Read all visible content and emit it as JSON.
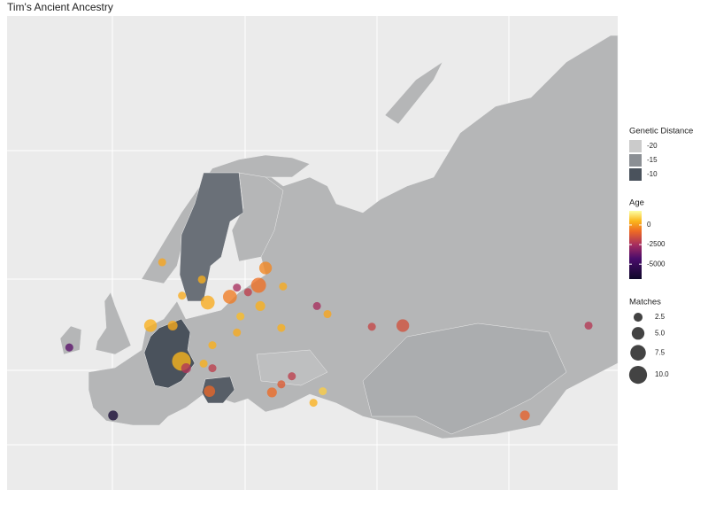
{
  "title": "Tim's Ancient Ancestry",
  "legend_genetic_distance": {
    "title": "Genetic Distance",
    "ticks": [
      -20,
      -15,
      -10
    ],
    "lim": [
      -20,
      -10
    ]
  },
  "regions": [
    {
      "distance": -12.5
    },
    {
      "distance": -10
    },
    {
      "distance": -11
    },
    {
      "distance": -17.5
    },
    {
      "distance": -19
    }
  ],
  "legend_age": {
    "title": "Age",
    "ticks": [
      0,
      -2500,
      -5000
    ],
    "lim": [
      -6900,
      1800
    ]
  },
  "legend_matches": {
    "title": "Matches",
    "ticks": [
      2.5,
      {
        "value": 5,
        "label": "5.0"
      },
      7.5,
      {
        "value": 10,
        "label": "10.0"
      }
    ]
  },
  "points": [
    {
      "lon": -7.5,
      "lat": 51.6,
      "age": -4000,
      "matches": 2
    },
    {
      "lon": 0.0,
      "lat": 45.7,
      "age": -6500,
      "matches": 3
    },
    {
      "lon": 11.7,
      "lat": 50.4,
      "age": 500,
      "matches": 11
    },
    {
      "lon": 16.2,
      "lat": 55.5,
      "age": 300,
      "matches": 6
    },
    {
      "lon": 20.0,
      "lat": 56.0,
      "age": -500,
      "matches": 6
    },
    {
      "lon": 24.9,
      "lat": 57.0,
      "age": -700,
      "matches": 7
    },
    {
      "lon": 26.1,
      "lat": 58.5,
      "age": -300,
      "matches": 5
    },
    {
      "lon": 49.6,
      "lat": 53.5,
      "age": -1500,
      "matches": 5
    },
    {
      "lon": 81.4,
      "lat": 53.5,
      "age": -2200,
      "matches": 2
    },
    {
      "lon": 70.5,
      "lat": 45.7,
      "age": -1000,
      "matches": 3
    },
    {
      "lon": 27.2,
      "lat": 47.7,
      "age": -800,
      "matches": 3
    },
    {
      "lon": 16.5,
      "lat": 47.8,
      "age": -900,
      "matches": 4
    },
    {
      "lon": 8.4,
      "lat": 59.0,
      "age": 200,
      "matches": 2
    },
    {
      "lon": 6.4,
      "lat": 53.5,
      "age": 400,
      "matches": 5
    },
    {
      "lon": 10.2,
      "lat": 53.5,
      "age": 300,
      "matches": 3
    },
    {
      "lon": 21.8,
      "lat": 54.3,
      "age": 600,
      "matches": 2
    },
    {
      "lon": 25.2,
      "lat": 55.2,
      "age": 400,
      "matches": 3
    },
    {
      "lon": 29.1,
      "lat": 56.9,
      "age": 300,
      "matches": 2
    },
    {
      "lon": 34.9,
      "lat": 55.2,
      "age": -2500,
      "matches": 2
    },
    {
      "lon": 36.7,
      "lat": 54.5,
      "age": 200,
      "matches": 2
    },
    {
      "lon": 44.3,
      "lat": 53.4,
      "age": -1800,
      "matches": 2
    },
    {
      "lon": 28.8,
      "lat": 53.3,
      "age": 400,
      "matches": 2
    },
    {
      "lon": 21.2,
      "lat": 52.9,
      "age": 300,
      "matches": 2
    },
    {
      "lon": 17.0,
      "lat": 51.8,
      "age": 400,
      "matches": 2
    },
    {
      "lon": 15.5,
      "lat": 50.2,
      "age": 400,
      "matches": 2
    },
    {
      "lon": 17.0,
      "lat": 49.8,
      "age": -2000,
      "matches": 2
    },
    {
      "lon": 12.5,
      "lat": 49.8,
      "age": -2300,
      "matches": 3
    },
    {
      "lon": 35.9,
      "lat": 47.8,
      "age": 900,
      "matches": 2
    },
    {
      "lon": 34.3,
      "lat": 46.8,
      "age": 400,
      "matches": 2
    },
    {
      "lon": 30.6,
      "lat": 49.1,
      "age": -2000,
      "matches": 2
    },
    {
      "lon": 28.8,
      "lat": 48.4,
      "age": -1200,
      "matches": 2
    },
    {
      "lon": 23.1,
      "lat": 56.4,
      "age": -2000,
      "matches": 2
    },
    {
      "lon": 21.2,
      "lat": 56.8,
      "age": -2500,
      "matches": 2
    },
    {
      "lon": 11.8,
      "lat": 56.1,
      "age": 300,
      "matches": 2
    },
    {
      "lon": 15.2,
      "lat": 57.5,
      "age": 400,
      "matches": 2
    }
  ]
}
